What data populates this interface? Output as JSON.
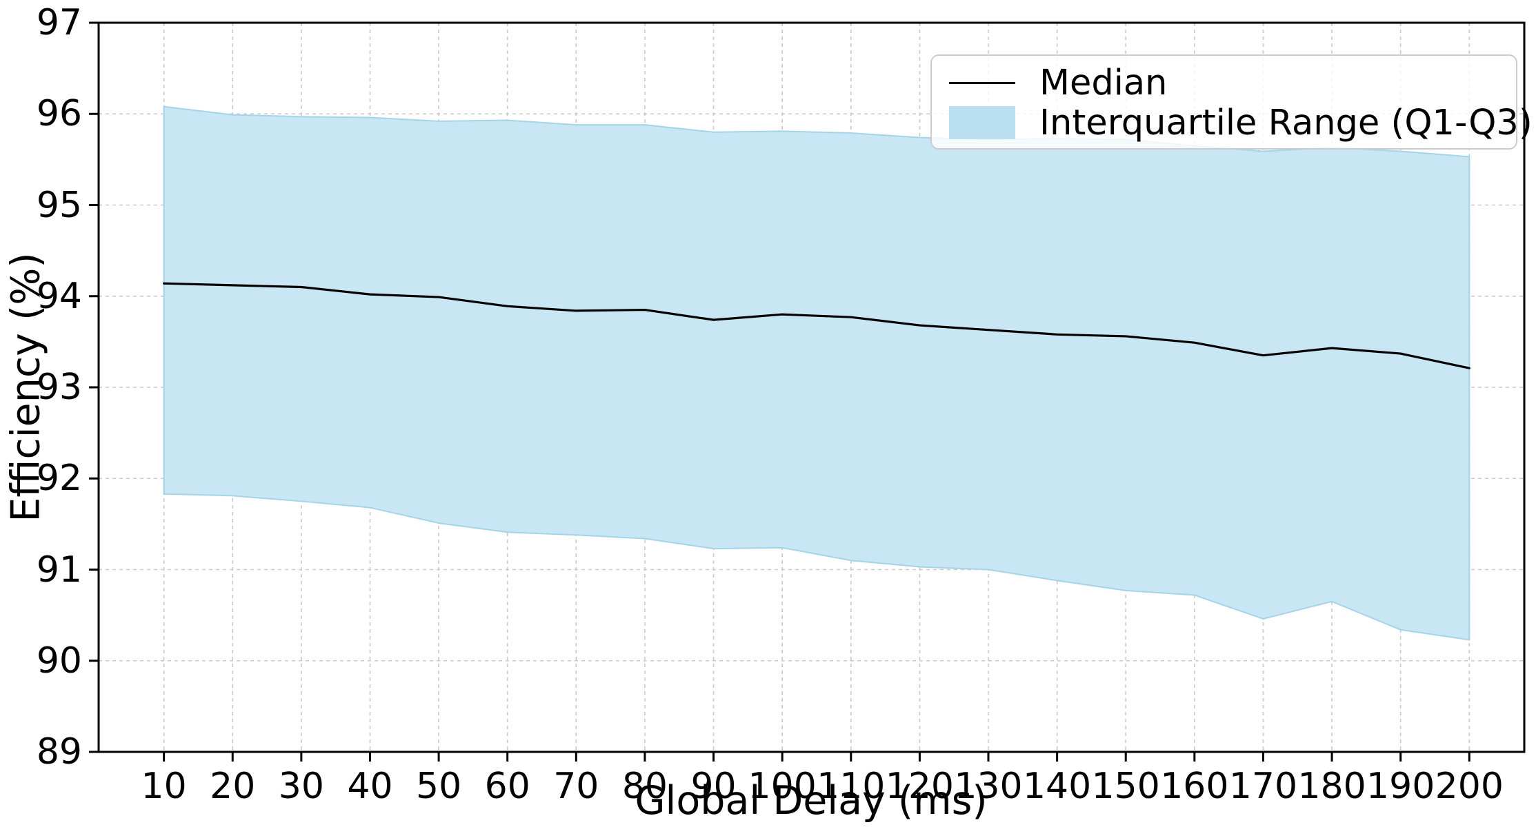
{
  "chart_data": {
    "type": "line",
    "x": [
      10,
      20,
      30,
      40,
      50,
      60,
      70,
      80,
      90,
      100,
      110,
      120,
      130,
      140,
      150,
      160,
      170,
      180,
      190,
      200
    ],
    "series": [
      {
        "name": "Median",
        "type": "line",
        "color": "#000000",
        "values": [
          94.14,
          94.12,
          94.1,
          94.02,
          93.99,
          93.89,
          93.84,
          93.85,
          93.74,
          93.8,
          93.77,
          93.68,
          93.63,
          93.58,
          93.56,
          93.49,
          93.35,
          93.43,
          93.37,
          93.21
        ]
      },
      {
        "name": "Interquartile Range (Q1-Q3)",
        "type": "band",
        "color": "#c8e6f4",
        "edge_color": "#a5d4e9",
        "lower": [
          91.83,
          91.81,
          91.75,
          91.68,
          91.51,
          91.41,
          91.38,
          91.34,
          91.23,
          91.24,
          91.1,
          91.03,
          91.0,
          90.88,
          90.77,
          90.72,
          90.46,
          90.65,
          90.34,
          90.23
        ],
        "upper": [
          96.08,
          95.99,
          95.97,
          95.96,
          95.92,
          95.93,
          95.88,
          95.88,
          95.8,
          95.81,
          95.79,
          95.74,
          95.72,
          95.73,
          95.72,
          95.65,
          95.59,
          95.63,
          95.59,
          95.53
        ]
      }
    ],
    "xlabel": "Global Delay (ms)",
    "ylabel": "Efficiency (%)",
    "xlim": [
      0.5,
      208
    ],
    "ylim": [
      89,
      97
    ],
    "x_ticks": [
      10,
      20,
      30,
      40,
      50,
      60,
      70,
      80,
      90,
      100,
      110,
      120,
      130,
      140,
      150,
      160,
      170,
      180,
      190,
      200
    ],
    "y_ticks": [
      89,
      90,
      91,
      92,
      93,
      94,
      95,
      96,
      97
    ],
    "grid": true,
    "grid_color": "#c9c9c9",
    "spine_color": "#000000",
    "legend_position": "top-right"
  }
}
